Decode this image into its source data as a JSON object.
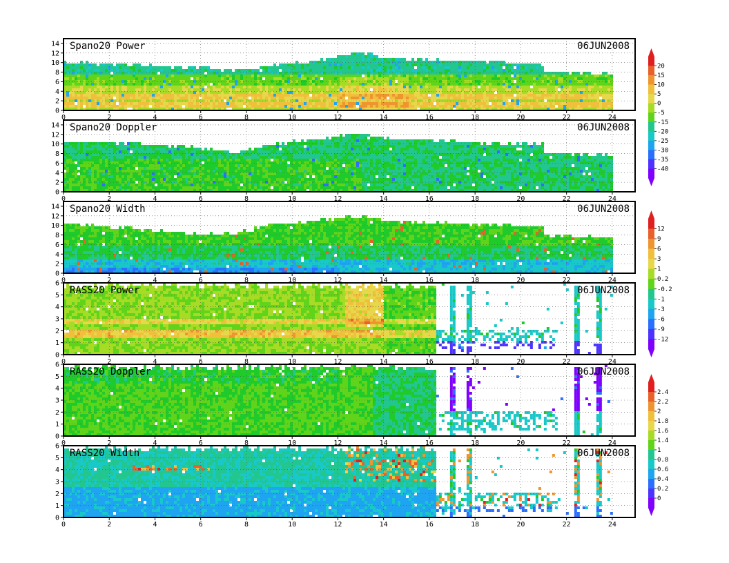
{
  "palette": [
    "#8000ff",
    "#4d33ff",
    "#2a6fff",
    "#1ea4f0",
    "#19c8c8",
    "#22c790",
    "#1ecb2a",
    "#5fd41a",
    "#a6dc26",
    "#e6d84a",
    "#f0c03c",
    "#ee9530",
    "#e8602a",
    "#e02020"
  ],
  "chart_data": [
    {
      "type": "heatmap",
      "title": "Spano20  Power",
      "date": "06JUN2008",
      "x_range": [
        0,
        25
      ],
      "y_range": [
        0,
        15
      ],
      "x_ticks": [
        0,
        2,
        4,
        6,
        8,
        10,
        12,
        14,
        16,
        18,
        20,
        22,
        24
      ],
      "y_ticks": [
        0,
        2,
        4,
        6,
        8,
        10,
        12,
        14
      ],
      "grid": true,
      "data_end_hour": 24,
      "top_height_profile": [
        [
          0,
          10.3
        ],
        [
          3,
          9.8
        ],
        [
          6,
          9.2
        ],
        [
          7.5,
          8.6
        ],
        [
          9,
          9.6
        ],
        [
          11,
          10.8
        ],
        [
          12,
          11.6
        ],
        [
          13,
          12.3
        ],
        [
          14,
          11.4
        ],
        [
          15,
          11
        ],
        [
          17,
          10.6
        ],
        [
          19,
          10.3
        ],
        [
          20.9,
          10
        ],
        [
          21,
          8.4
        ],
        [
          24,
          8
        ]
      ],
      "colorbar": {
        "labels": [
          "20",
          "15",
          "10",
          "5",
          "0",
          "-5",
          "-15",
          "-20",
          "-25",
          "-30",
          "-35",
          "-40"
        ]
      }
    },
    {
      "type": "heatmap",
      "title": "Spano20  Doppler",
      "date": "06JUN2008",
      "x_range": [
        0,
        25
      ],
      "y_range": [
        0,
        15
      ],
      "x_ticks": [
        0,
        2,
        4,
        6,
        8,
        10,
        12,
        14,
        16,
        18,
        20,
        22,
        24
      ],
      "y_ticks": [
        0,
        2,
        4,
        6,
        8,
        10,
        12,
        14
      ],
      "grid": true,
      "data_end_hour": 24,
      "top_height_profile": [
        [
          0,
          10.8
        ],
        [
          3,
          10.5
        ],
        [
          6,
          9.5
        ],
        [
          7.5,
          8.4
        ],
        [
          9,
          10.3
        ],
        [
          11,
          11.2
        ],
        [
          12,
          11.9
        ],
        [
          13,
          12.5
        ],
        [
          14,
          11.6
        ],
        [
          16,
          11
        ],
        [
          18,
          10.6
        ],
        [
          20.9,
          10.2
        ],
        [
          21,
          8.3
        ],
        [
          24,
          8
        ]
      ],
      "colorbar": null
    },
    {
      "type": "heatmap",
      "title": "Spano20  Width",
      "date": "06JUN2008",
      "x_range": [
        0,
        25
      ],
      "y_range": [
        0,
        15
      ],
      "x_ticks": [
        0,
        2,
        4,
        6,
        8,
        10,
        12,
        14,
        16,
        18,
        20,
        22,
        24
      ],
      "y_ticks": [
        0,
        2,
        4,
        6,
        8,
        10,
        12,
        14
      ],
      "grid": true,
      "data_end_hour": 24,
      "top_height_profile": [
        [
          0,
          10.8
        ],
        [
          3,
          9.6
        ],
        [
          6,
          8.4
        ],
        [
          7.5,
          8.6
        ],
        [
          9,
          10.3
        ],
        [
          11,
          11.2
        ],
        [
          12,
          11.8
        ],
        [
          13,
          12.2
        ],
        [
          14,
          11.4
        ],
        [
          16,
          10.8
        ],
        [
          18,
          10.5
        ],
        [
          20.9,
          10
        ],
        [
          21,
          8.2
        ],
        [
          24,
          7.8
        ]
      ],
      "colorbar": {
        "labels": [
          "12",
          "9",
          "6",
          "3",
          "1",
          "0.2",
          "-0.2",
          "-1",
          "-3",
          "-6",
          "-9",
          "-12"
        ]
      }
    },
    {
      "type": "heatmap",
      "title": "RASS20  Power",
      "date": "06JUN2008",
      "x_range": [
        0,
        25
      ],
      "y_range": [
        0,
        6
      ],
      "x_ticks": [
        0,
        2,
        4,
        6,
        8,
        10,
        12,
        14,
        16,
        18,
        20,
        22,
        24
      ],
      "y_ticks": [
        0,
        1,
        2,
        3,
        4,
        5,
        6
      ],
      "grid": true,
      "data_end_hour": 16.3,
      "top_height_profile": [
        [
          0,
          5.9
        ],
        [
          16.3,
          5.9
        ]
      ],
      "colorbar": null
    },
    {
      "type": "heatmap",
      "title": "RASS20  Doppler",
      "date": "06JUN2008",
      "x_range": [
        0,
        25
      ],
      "y_range": [
        0,
        6
      ],
      "x_ticks": [
        0,
        2,
        4,
        6,
        8,
        10,
        12,
        14,
        16,
        18,
        20,
        22,
        24
      ],
      "y_ticks": [
        0,
        1,
        2,
        3,
        4,
        5,
        6
      ],
      "grid": true,
      "data_end_hour": 16.3,
      "top_height_profile": [
        [
          0,
          5.9
        ],
        [
          16.3,
          5.9
        ]
      ],
      "colorbar": {
        "labels": [
          "2.4",
          "2.2",
          "2",
          "1.8",
          "1.6",
          "1.4",
          "1",
          "0.8",
          "0.6",
          "0.4",
          "0.2",
          "0"
        ]
      }
    },
    {
      "type": "heatmap",
      "title": "RASS20  Width",
      "date": "06JUN2008",
      "x_range": [
        0,
        25
      ],
      "y_range": [
        0,
        6
      ],
      "x_ticks": [
        0,
        2,
        4,
        6,
        8,
        10,
        12,
        14,
        16,
        18,
        20,
        22,
        24
      ],
      "y_ticks": [
        0,
        1,
        2,
        3,
        4,
        5,
        6
      ],
      "grid": true,
      "data_end_hour": 16.3,
      "top_height_profile": [
        [
          0,
          5.9
        ],
        [
          16.3,
          5.9
        ]
      ],
      "colorbar": null
    }
  ]
}
